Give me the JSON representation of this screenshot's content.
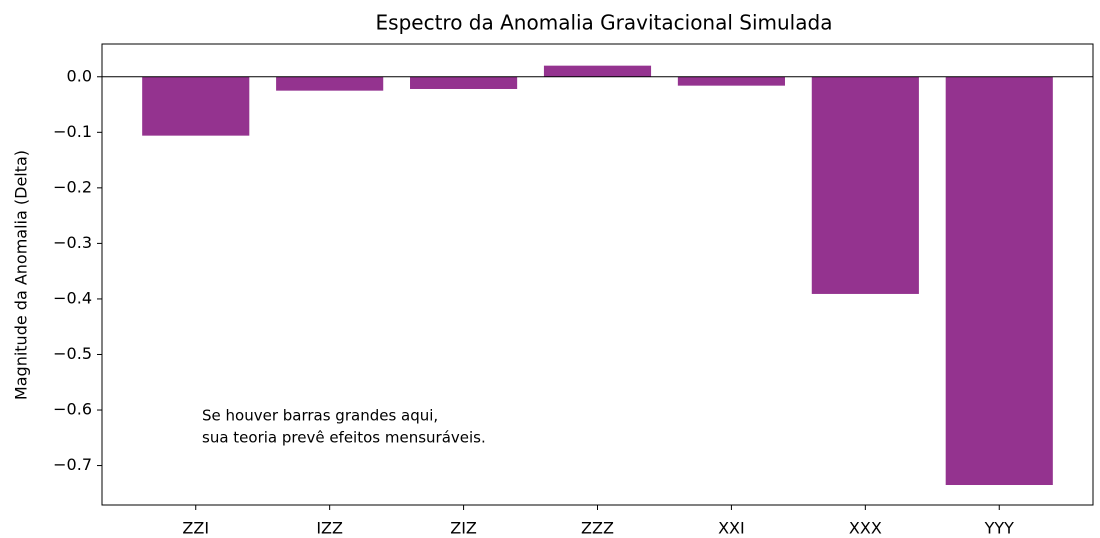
{
  "chart_data": {
    "type": "bar",
    "title": "Espectro da Anomalia Gravitacional Simulada",
    "y_label": "Magnitude da Anomalia (Delta)",
    "categories": [
      "ZZI",
      "IZZ",
      "ZIZ",
      "ZZZ",
      "XXI",
      "XXX",
      "YYY"
    ],
    "values": [
      -0.106,
      -0.025,
      -0.022,
      0.02,
      -0.016,
      -0.391,
      -0.735
    ],
    "color": "#94338f",
    "ylim": [
      -0.771,
      0.059
    ],
    "yticks": [
      {
        "value": 0,
        "label": "0.0"
      },
      {
        "value": -0.1,
        "label": "−0.1"
      },
      {
        "value": -0.2,
        "label": "−0.2"
      },
      {
        "value": -0.3,
        "label": "−0.3"
      },
      {
        "value": -0.4,
        "label": "−0.4"
      },
      {
        "value": -0.5,
        "label": "−0.5"
      },
      {
        "value": -0.6,
        "label": "−0.6"
      },
      {
        "value": -0.7,
        "label": "−0.7"
      }
    ],
    "annotation": [
      "Se houver barras grandes aqui,",
      "sua teoria prevê efeitos mensuráveis."
    ],
    "zero_line": true
  }
}
